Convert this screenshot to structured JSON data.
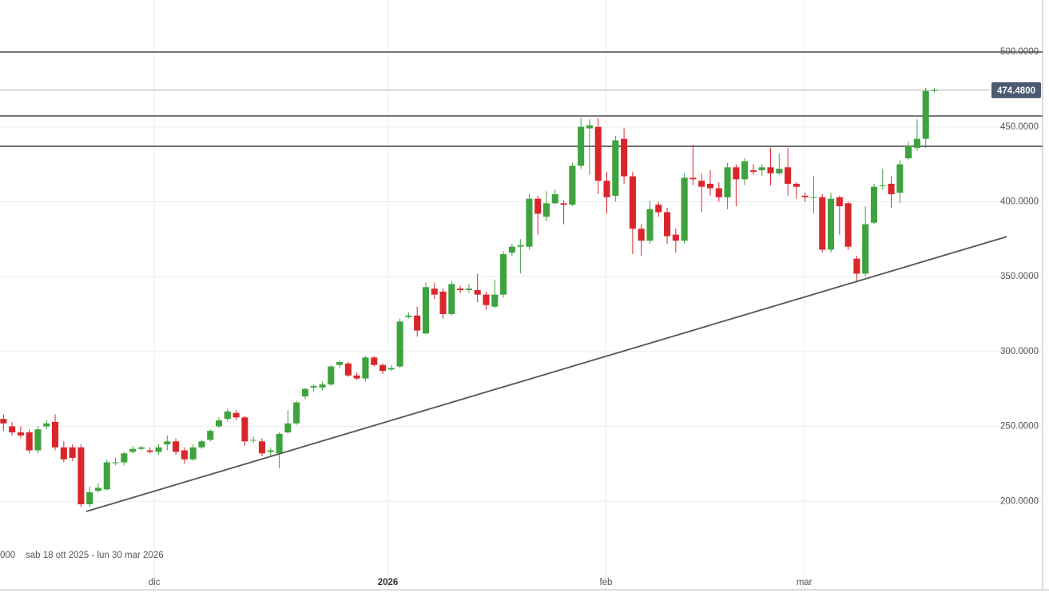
{
  "chart_data": {
    "type": "candlestick",
    "range_label": "sab 18 ott 2025 - lun 30 mar 2026",
    "left_fragment": "000",
    "x": [
      0,
      1,
      2,
      3,
      4,
      5,
      6,
      7,
      8,
      9,
      10,
      11,
      12,
      13,
      14,
      15,
      16,
      17,
      18,
      19,
      20,
      21,
      22,
      23,
      24,
      25,
      26,
      27,
      28,
      29,
      30,
      31,
      32,
      33,
      34,
      35,
      36,
      37,
      38,
      39,
      40,
      41,
      42,
      43,
      44,
      45,
      46,
      47,
      48,
      49,
      50,
      51,
      52,
      53,
      54,
      55,
      56,
      57,
      58,
      59,
      60,
      61,
      62,
      63,
      64,
      65,
      66,
      67,
      68,
      69,
      70,
      71,
      72,
      73,
      74,
      75,
      76,
      77,
      78,
      79,
      80,
      81,
      82,
      83,
      84,
      85,
      86,
      87,
      88,
      89,
      90,
      91,
      92,
      93,
      94,
      95,
      96,
      97,
      98,
      99,
      100,
      101,
      102,
      103,
      104,
      105,
      106,
      107,
      108
    ],
    "open": [
      255,
      250,
      246,
      246,
      234,
      250,
      253,
      236,
      236,
      236,
      198,
      207,
      208,
      226,
      226,
      233,
      235,
      234,
      233,
      238,
      240,
      234,
      228,
      236,
      241,
      250,
      255,
      259,
      256,
      241,
      240,
      233,
      232,
      246,
      252,
      270,
      276,
      276,
      278,
      291,
      292,
      284,
      282,
      296,
      291,
      288,
      290,
      323,
      324,
      312,
      342,
      340,
      325,
      342,
      341,
      341,
      338,
      330,
      338,
      366,
      370,
      370,
      402,
      390,
      399,
      399,
      398,
      424,
      449,
      450,
      414,
      404,
      442,
      417,
      382,
      374,
      398,
      393,
      378,
      374,
      416,
      414,
      412,
      409,
      403,
      423,
      415,
      421,
      421,
      423,
      419,
      423,
      412,
      404,
      403,
      403,
      368,
      403,
      399,
      362,
      352,
      386,
      411,
      412,
      406,
      429,
      436,
      442,
      474
    ],
    "high": [
      258,
      253,
      250,
      248,
      250,
      254,
      258,
      240,
      238,
      238,
      210,
      212,
      228,
      229,
      233,
      237,
      237,
      236,
      238,
      244,
      242,
      236,
      238,
      241,
      248,
      256,
      262,
      261,
      257,
      243,
      242,
      236,
      246,
      261,
      267,
      276,
      278,
      280,
      291,
      294,
      293,
      286,
      297,
      297,
      292,
      291,
      322,
      326,
      330,
      346,
      346,
      342,
      347,
      344,
      345,
      352,
      340,
      348,
      367,
      372,
      375,
      405,
      404,
      407,
      408,
      401,
      426,
      456,
      455,
      456,
      420,
      444,
      449,
      420,
      385,
      401,
      400,
      396,
      382,
      419,
      438,
      419,
      421,
      413,
      426,
      425,
      429,
      425,
      425,
      436,
      432,
      436,
      413,
      406,
      417,
      405,
      406,
      404,
      400,
      364,
      397,
      412,
      422,
      417,
      428,
      440,
      455,
      476,
      476
    ],
    "low": [
      247,
      244,
      242,
      232,
      232,
      248,
      234,
      226,
      227,
      196,
      196,
      206,
      207,
      224,
      224,
      232,
      234,
      232,
      231,
      234,
      231,
      225,
      227,
      235,
      240,
      249,
      253,
      254,
      237,
      239,
      230,
      230,
      222,
      245,
      251,
      268,
      273,
      274,
      277,
      289,
      283,
      281,
      280,
      290,
      285,
      287,
      289,
      322,
      310,
      312,
      335,
      322,
      324,
      339,
      339,
      333,
      328,
      329,
      336,
      364,
      352,
      368,
      378,
      387,
      398,
      385,
      397,
      422,
      418,
      405,
      392,
      400,
      412,
      365,
      364,
      372,
      390,
      372,
      366,
      372,
      411,
      393,
      404,
      400,
      395,
      397,
      411,
      418,
      417,
      411,
      418,
      404,
      402,
      400,
      392,
      366,
      366,
      378,
      368,
      346,
      350,
      385,
      408,
      396,
      399,
      428,
      434,
      436,
      473
    ],
    "close": [
      252,
      246,
      244,
      234,
      248,
      252,
      236,
      228,
      229,
      198,
      206,
      209,
      226,
      226,
      232,
      235,
      236,
      233,
      236,
      240,
      233,
      228,
      236,
      240,
      247,
      254,
      260,
      256,
      240,
      241,
      232,
      234,
      245,
      252,
      266,
      275,
      277,
      278,
      290,
      293,
      284,
      282,
      296,
      291,
      287,
      289,
      320,
      324,
      314,
      343,
      338,
      325,
      345,
      341,
      342,
      338,
      331,
      338,
      365,
      370,
      371,
      402,
      392,
      399,
      405,
      398,
      424,
      450,
      451,
      414,
      403,
      441,
      417,
      382,
      374,
      395,
      393,
      377,
      374,
      416,
      415,
      410,
      409,
      403,
      423,
      415,
      427,
      420,
      423,
      419,
      422,
      412,
      410,
      403,
      403,
      368,
      402,
      397,
      370,
      352,
      385,
      410,
      411,
      405,
      425,
      437,
      442,
      474,
      474.48
    ],
    "up_color": "#3ea33e",
    "down_color": "#d9262b",
    "xlim": [
      -0.4,
      121.3
    ],
    "xticks": [
      {
        "value": 17.5,
        "label": "dic"
      },
      {
        "value": 44.6,
        "label": "2026",
        "bold": true
      },
      {
        "value": 69.9,
        "label": "feb"
      },
      {
        "value": 92.9,
        "label": "mar"
      }
    ],
    "ylim": [
      140.9,
      534.7
    ],
    "yticks": [
      {
        "value": 200,
        "label": "200.0000"
      },
      {
        "value": 250,
        "label": "250.0000"
      },
      {
        "value": 300,
        "label": "300.0000"
      },
      {
        "value": 350,
        "label": "350.0000"
      },
      {
        "value": 400,
        "label": "400.0000"
      },
      {
        "value": 450,
        "label": "450.0000"
      },
      {
        "value": 500,
        "label": "500.0000"
      }
    ],
    "grid": true,
    "levels": [
      500,
      457.3,
      437
    ],
    "last": {
      "value": 474.48,
      "label": "474.4800"
    },
    "trendline": {
      "x": [
        9.6,
        116.4
      ],
      "values": [
        193.2,
        376.7
      ]
    }
  }
}
